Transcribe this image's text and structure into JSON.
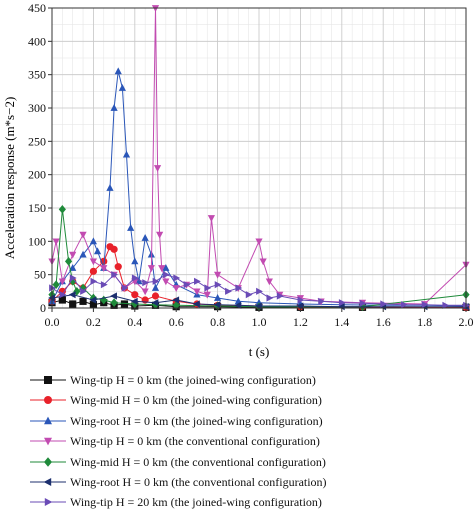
{
  "chart_data": {
    "type": "line",
    "xlabel": "t (s)",
    "ylabel": "Acceleration response (m*s−2)",
    "xlim": [
      0,
      2.0
    ],
    "ylim": [
      0,
      450
    ],
    "xticks": [
      "0.0",
      "0.2",
      "0.4",
      "0.6",
      "0.8",
      "1.0",
      "1.2",
      "1.4",
      "1.6",
      "1.8",
      "2.0"
    ],
    "yticks": [
      "0",
      "50",
      "100",
      "150",
      "200",
      "250",
      "300",
      "350",
      "400",
      "450"
    ],
    "grid": true,
    "legend_position": "below",
    "series": [
      {
        "name": "Wing-tip H = 0 km (the joined-wing configuration)",
        "color": "#111111",
        "marker": "square",
        "x": [
          0.0,
          0.05,
          0.1,
          0.15,
          0.2,
          0.25,
          0.3,
          0.35,
          0.4,
          0.5,
          0.6,
          0.8,
          1.0,
          1.2,
          1.5,
          2.0
        ],
        "y": [
          8,
          12,
          6,
          10,
          5,
          8,
          4,
          6,
          3,
          4,
          2,
          2,
          1,
          1,
          1,
          1
        ]
      },
      {
        "name": "Wing-mid H = 0 km (the joined-wing configuration)",
        "color": "#e8212a",
        "marker": "circle",
        "x": [
          0.0,
          0.05,
          0.1,
          0.15,
          0.2,
          0.25,
          0.28,
          0.3,
          0.32,
          0.35,
          0.4,
          0.45,
          0.5,
          0.6,
          0.7,
          0.8,
          1.0,
          1.2,
          1.5,
          2.0
        ],
        "y": [
          10,
          25,
          40,
          30,
          55,
          70,
          92,
          88,
          62,
          30,
          20,
          12,
          18,
          10,
          6,
          4,
          3,
          2,
          2,
          1
        ]
      },
      {
        "name": "Wing-root H = 0 km (the joined-wing configuration)",
        "color": "#2a56b8",
        "marker": "triangle-up",
        "x": [
          0.0,
          0.05,
          0.1,
          0.15,
          0.2,
          0.22,
          0.25,
          0.28,
          0.3,
          0.32,
          0.34,
          0.36,
          0.38,
          0.4,
          0.42,
          0.45,
          0.48,
          0.5,
          0.55,
          0.6,
          0.7,
          0.8,
          0.9,
          1.0,
          1.2,
          1.4,
          1.6,
          1.8,
          2.0
        ],
        "y": [
          10,
          40,
          60,
          80,
          100,
          85,
          60,
          180,
          300,
          355,
          330,
          230,
          120,
          70,
          40,
          105,
          80,
          30,
          60,
          35,
          20,
          15,
          10,
          8,
          6,
          5,
          4,
          4,
          3
        ]
      },
      {
        "name": "Wing-tip H = 0 km (the conventional configuration)",
        "color": "#c24bb1",
        "marker": "triangle-down",
        "x": [
          0.0,
          0.02,
          0.05,
          0.1,
          0.15,
          0.2,
          0.25,
          0.3,
          0.35,
          0.4,
          0.45,
          0.48,
          0.5,
          0.51,
          0.52,
          0.53,
          0.55,
          0.6,
          0.65,
          0.7,
          0.75,
          0.77,
          0.8,
          0.9,
          1.0,
          1.02,
          1.05,
          1.1,
          1.2,
          1.3,
          1.5,
          1.8,
          2.0
        ],
        "y": [
          70,
          100,
          40,
          80,
          110,
          70,
          60,
          50,
          30,
          40,
          25,
          60,
          450,
          210,
          110,
          60,
          40,
          30,
          35,
          25,
          20,
          135,
          50,
          30,
          100,
          70,
          40,
          20,
          15,
          10,
          8,
          6,
          65
        ]
      },
      {
        "name": "Wing-mid H = 0 km (the conventional configuration)",
        "color": "#1f8a3a",
        "marker": "diamond",
        "x": [
          0.0,
          0.02,
          0.05,
          0.08,
          0.1,
          0.12,
          0.15,
          0.2,
          0.25,
          0.3,
          0.4,
          0.5,
          0.6,
          0.8,
          1.0,
          1.5,
          2.0
        ],
        "y": [
          20,
          35,
          148,
          70,
          40,
          25,
          30,
          15,
          12,
          8,
          6,
          5,
          4,
          3,
          2,
          2,
          20
        ]
      },
      {
        "name": "Wing-root H = 0 km (the conventional configuration)",
        "color": "#1c2f6e",
        "marker": "triangle-left",
        "x": [
          0.0,
          0.1,
          0.2,
          0.3,
          0.4,
          0.5,
          0.6,
          0.7,
          0.8,
          0.9,
          1.0,
          1.2,
          1.4,
          1.6,
          1.8,
          2.0
        ],
        "y": [
          15,
          20,
          12,
          18,
          10,
          8,
          12,
          6,
          5,
          4,
          3,
          3,
          2,
          2,
          2,
          2
        ]
      },
      {
        "name": "Wing-tip H = 20 km (the joined-wing configuration)",
        "color": "#6a4bb6",
        "marker": "triangle-right",
        "x": [
          0.0,
          0.05,
          0.1,
          0.15,
          0.2,
          0.25,
          0.3,
          0.35,
          0.4,
          0.45,
          0.5,
          0.55,
          0.6,
          0.65,
          0.7,
          0.75,
          0.8,
          0.85,
          0.9,
          0.95,
          1.0,
          1.05,
          1.1,
          1.2,
          1.3,
          1.4,
          1.5,
          1.6,
          1.7,
          1.8,
          1.9,
          2.0
        ],
        "y": [
          30,
          20,
          45,
          25,
          40,
          35,
          50,
          30,
          45,
          38,
          40,
          50,
          45,
          35,
          40,
          30,
          35,
          25,
          30,
          20,
          25,
          15,
          18,
          12,
          10,
          8,
          7,
          6,
          5,
          5,
          4,
          4
        ]
      }
    ]
  }
}
